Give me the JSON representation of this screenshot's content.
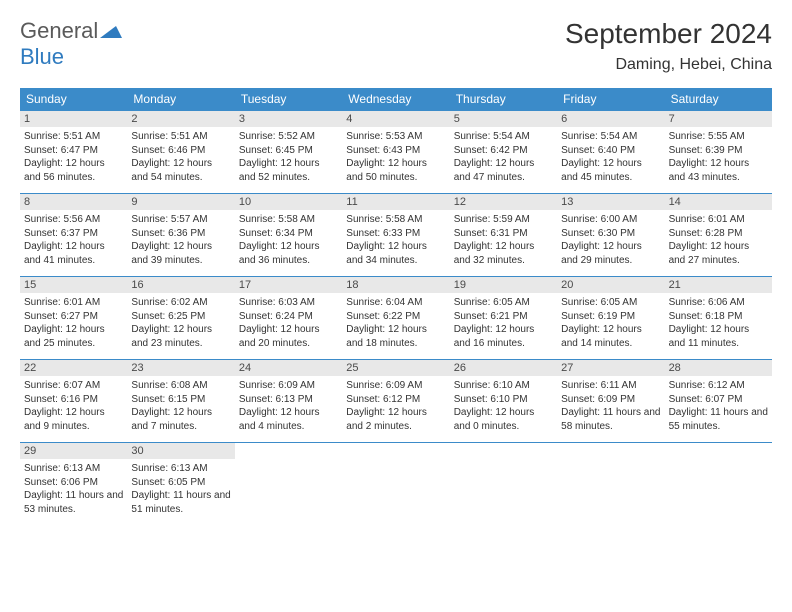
{
  "logo": {
    "general": "General",
    "blue": "Blue"
  },
  "title": "September 2024",
  "location": "Daming, Hebei, China",
  "weekdays": [
    "Sunday",
    "Monday",
    "Tuesday",
    "Wednesday",
    "Thursday",
    "Friday",
    "Saturday"
  ],
  "colors": {
    "header_bg": "#3b8bc9",
    "daynum_bg": "#e8e8e8",
    "logo_blue": "#2f7bbf",
    "logo_gray": "#5a5a5a"
  },
  "weeks": [
    [
      {
        "n": "1",
        "sunrise": "Sunrise: 5:51 AM",
        "sunset": "Sunset: 6:47 PM",
        "daylight": "Daylight: 12 hours and 56 minutes."
      },
      {
        "n": "2",
        "sunrise": "Sunrise: 5:51 AM",
        "sunset": "Sunset: 6:46 PM",
        "daylight": "Daylight: 12 hours and 54 minutes."
      },
      {
        "n": "3",
        "sunrise": "Sunrise: 5:52 AM",
        "sunset": "Sunset: 6:45 PM",
        "daylight": "Daylight: 12 hours and 52 minutes."
      },
      {
        "n": "4",
        "sunrise": "Sunrise: 5:53 AM",
        "sunset": "Sunset: 6:43 PM",
        "daylight": "Daylight: 12 hours and 50 minutes."
      },
      {
        "n": "5",
        "sunrise": "Sunrise: 5:54 AM",
        "sunset": "Sunset: 6:42 PM",
        "daylight": "Daylight: 12 hours and 47 minutes."
      },
      {
        "n": "6",
        "sunrise": "Sunrise: 5:54 AM",
        "sunset": "Sunset: 6:40 PM",
        "daylight": "Daylight: 12 hours and 45 minutes."
      },
      {
        "n": "7",
        "sunrise": "Sunrise: 5:55 AM",
        "sunset": "Sunset: 6:39 PM",
        "daylight": "Daylight: 12 hours and 43 minutes."
      }
    ],
    [
      {
        "n": "8",
        "sunrise": "Sunrise: 5:56 AM",
        "sunset": "Sunset: 6:37 PM",
        "daylight": "Daylight: 12 hours and 41 minutes."
      },
      {
        "n": "9",
        "sunrise": "Sunrise: 5:57 AM",
        "sunset": "Sunset: 6:36 PM",
        "daylight": "Daylight: 12 hours and 39 minutes."
      },
      {
        "n": "10",
        "sunrise": "Sunrise: 5:58 AM",
        "sunset": "Sunset: 6:34 PM",
        "daylight": "Daylight: 12 hours and 36 minutes."
      },
      {
        "n": "11",
        "sunrise": "Sunrise: 5:58 AM",
        "sunset": "Sunset: 6:33 PM",
        "daylight": "Daylight: 12 hours and 34 minutes."
      },
      {
        "n": "12",
        "sunrise": "Sunrise: 5:59 AM",
        "sunset": "Sunset: 6:31 PM",
        "daylight": "Daylight: 12 hours and 32 minutes."
      },
      {
        "n": "13",
        "sunrise": "Sunrise: 6:00 AM",
        "sunset": "Sunset: 6:30 PM",
        "daylight": "Daylight: 12 hours and 29 minutes."
      },
      {
        "n": "14",
        "sunrise": "Sunrise: 6:01 AM",
        "sunset": "Sunset: 6:28 PM",
        "daylight": "Daylight: 12 hours and 27 minutes."
      }
    ],
    [
      {
        "n": "15",
        "sunrise": "Sunrise: 6:01 AM",
        "sunset": "Sunset: 6:27 PM",
        "daylight": "Daylight: 12 hours and 25 minutes."
      },
      {
        "n": "16",
        "sunrise": "Sunrise: 6:02 AM",
        "sunset": "Sunset: 6:25 PM",
        "daylight": "Daylight: 12 hours and 23 minutes."
      },
      {
        "n": "17",
        "sunrise": "Sunrise: 6:03 AM",
        "sunset": "Sunset: 6:24 PM",
        "daylight": "Daylight: 12 hours and 20 minutes."
      },
      {
        "n": "18",
        "sunrise": "Sunrise: 6:04 AM",
        "sunset": "Sunset: 6:22 PM",
        "daylight": "Daylight: 12 hours and 18 minutes."
      },
      {
        "n": "19",
        "sunrise": "Sunrise: 6:05 AM",
        "sunset": "Sunset: 6:21 PM",
        "daylight": "Daylight: 12 hours and 16 minutes."
      },
      {
        "n": "20",
        "sunrise": "Sunrise: 6:05 AM",
        "sunset": "Sunset: 6:19 PM",
        "daylight": "Daylight: 12 hours and 14 minutes."
      },
      {
        "n": "21",
        "sunrise": "Sunrise: 6:06 AM",
        "sunset": "Sunset: 6:18 PM",
        "daylight": "Daylight: 12 hours and 11 minutes."
      }
    ],
    [
      {
        "n": "22",
        "sunrise": "Sunrise: 6:07 AM",
        "sunset": "Sunset: 6:16 PM",
        "daylight": "Daylight: 12 hours and 9 minutes."
      },
      {
        "n": "23",
        "sunrise": "Sunrise: 6:08 AM",
        "sunset": "Sunset: 6:15 PM",
        "daylight": "Daylight: 12 hours and 7 minutes."
      },
      {
        "n": "24",
        "sunrise": "Sunrise: 6:09 AM",
        "sunset": "Sunset: 6:13 PM",
        "daylight": "Daylight: 12 hours and 4 minutes."
      },
      {
        "n": "25",
        "sunrise": "Sunrise: 6:09 AM",
        "sunset": "Sunset: 6:12 PM",
        "daylight": "Daylight: 12 hours and 2 minutes."
      },
      {
        "n": "26",
        "sunrise": "Sunrise: 6:10 AM",
        "sunset": "Sunset: 6:10 PM",
        "daylight": "Daylight: 12 hours and 0 minutes."
      },
      {
        "n": "27",
        "sunrise": "Sunrise: 6:11 AM",
        "sunset": "Sunset: 6:09 PM",
        "daylight": "Daylight: 11 hours and 58 minutes."
      },
      {
        "n": "28",
        "sunrise": "Sunrise: 6:12 AM",
        "sunset": "Sunset: 6:07 PM",
        "daylight": "Daylight: 11 hours and 55 minutes."
      }
    ],
    [
      {
        "n": "29",
        "sunrise": "Sunrise: 6:13 AM",
        "sunset": "Sunset: 6:06 PM",
        "daylight": "Daylight: 11 hours and 53 minutes."
      },
      {
        "n": "30",
        "sunrise": "Sunrise: 6:13 AM",
        "sunset": "Sunset: 6:05 PM",
        "daylight": "Daylight: 11 hours and 51 minutes."
      },
      null,
      null,
      null,
      null,
      null
    ]
  ]
}
